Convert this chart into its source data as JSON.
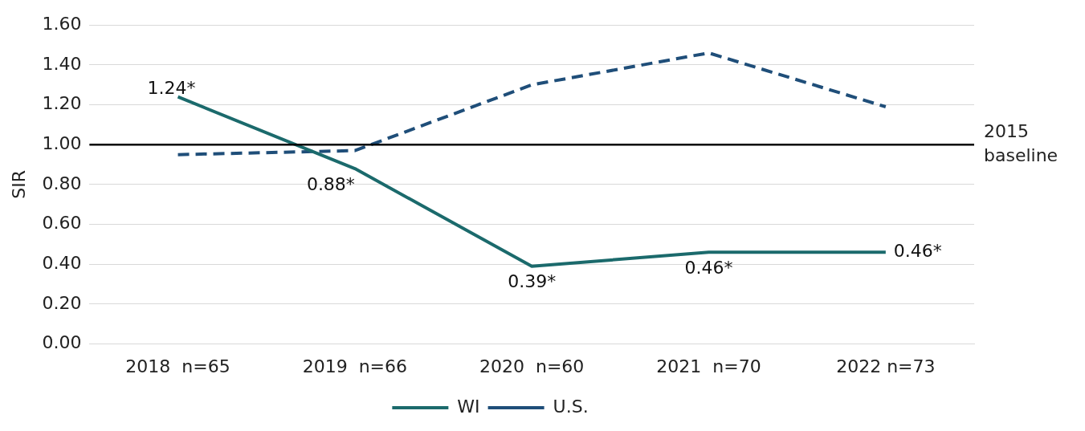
{
  "chart_data": {
    "type": "line",
    "ylabel": "SIR",
    "categories": [
      "2018  n=65",
      "2019  n=66",
      "2020  n=60",
      "2021  n=70",
      "2022 n=73"
    ],
    "series": [
      {
        "name": "WI",
        "color": "#1b6a6c",
        "line_style": "solid",
        "values": [
          1.24,
          0.88,
          0.39,
          0.46,
          0.46
        ],
        "value_labels": [
          "1.24*",
          "0.88*",
          "0.39*",
          "0.46*",
          "0.46*"
        ]
      },
      {
        "name": "U.S.",
        "color": "#1f4e79",
        "line_style": "dashed",
        "values": [
          0.95,
          0.97,
          1.3,
          1.46,
          1.19
        ]
      }
    ],
    "ylim": [
      0,
      1.6
    ],
    "yticks": [
      {
        "value": 0,
        "label": "0.00"
      },
      {
        "value": 0.2,
        "label": "0.20"
      },
      {
        "value": 0.4,
        "label": "0.40"
      },
      {
        "value": 0.6,
        "label": "0.60"
      },
      {
        "value": 0.8,
        "label": "0.80"
      },
      {
        "value": 1,
        "label": "1.00"
      },
      {
        "value": 1.2,
        "label": "1.20"
      },
      {
        "value": 1.4,
        "label": "1.40"
      },
      {
        "value": 1.6,
        "label": "1.60"
      }
    ],
    "ref_lines": [
      {
        "axis": "y",
        "value": 1,
        "label": "2015 baseline",
        "color": "#000000"
      }
    ],
    "grid": "y",
    "legend": "bottom",
    "marker": "none"
  }
}
